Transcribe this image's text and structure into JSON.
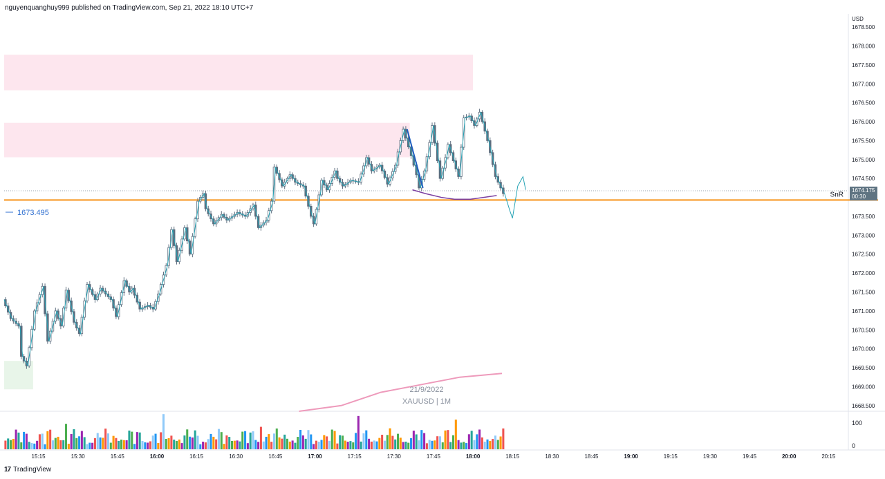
{
  "header": {
    "published": "nguyenquanghuy999 published on TradingView.com, Sep 21, 2022 18:10 UTC+7"
  },
  "footer": {
    "brand": "TradingView",
    "logo_icon": "tradingview-logo-icon"
  },
  "colors": {
    "candle": "#5d6d7e",
    "zigzag": "#26a3b5",
    "snr_line": "#f7931a",
    "demand_zone": "#e8f5e9",
    "supply_zone": "#fde6ee",
    "ma_line": "#ee9abb",
    "short_ma": "#7b3fa0",
    "leg": "#1e5fbf",
    "price_label_bg": "#5f7482",
    "ref_price": "#2f6fd0"
  },
  "chart_data": {
    "type": "candlestick",
    "symbol": "XAUUSD",
    "interval": "1M",
    "date": "21/9/2022",
    "watermark_lines": [
      "21/9/2022",
      "XAUUSD | 1M"
    ],
    "currency": "USD",
    "price_axis_labels": [
      "1678.500",
      "1678.000",
      "1677.500",
      "1677.000",
      "1676.500",
      "1676.000",
      "1675.500",
      "1675.000",
      "1674.500",
      "1674.000",
      "1673.500",
      "1673.000",
      "1672.500",
      "1672.000",
      "1671.500",
      "1671.000",
      "1670.500",
      "1670.000",
      "1669.500",
      "1669.000",
      "1668.500"
    ],
    "ylim": [
      1668.35,
      1678.85
    ],
    "time_axis_labels": [
      {
        "label": "15:15",
        "bold": false
      },
      {
        "label": "15:30",
        "bold": false
      },
      {
        "label": "15:45",
        "bold": false
      },
      {
        "label": "16:00",
        "bold": true
      },
      {
        "label": "16:15",
        "bold": false
      },
      {
        "label": "16:30",
        "bold": false
      },
      {
        "label": "16:45",
        "bold": false
      },
      {
        "label": "17:00",
        "bold": true
      },
      {
        "label": "17:15",
        "bold": false
      },
      {
        "label": "17:30",
        "bold": false
      },
      {
        "label": "17:45",
        "bold": false
      },
      {
        "label": "18:00",
        "bold": true
      },
      {
        "label": "18:15",
        "bold": false
      },
      {
        "label": "18:30",
        "bold": false
      },
      {
        "label": "18:45",
        "bold": false
      },
      {
        "label": "19:00",
        "bold": true
      },
      {
        "label": "19:15",
        "bold": false
      },
      {
        "label": "19:30",
        "bold": false
      },
      {
        "label": "19:45",
        "bold": false
      },
      {
        "label": "20:00",
        "bold": true
      },
      {
        "label": "20:15",
        "bold": false
      }
    ],
    "time_start": "15:02",
    "time_end": "20:22",
    "last_bar_time": "18:11",
    "current_price": "1674.175",
    "countdown": "00:30",
    "current_price_value": 1674.175,
    "ref_price_label": "1673.495",
    "snr": {
      "label": "SnR",
      "price": 1673.93
    },
    "zones": [
      {
        "kind": "supply",
        "price_top": 1677.77,
        "price_bottom": 1676.83,
        "time_start": "15:02",
        "time_end": "18:00"
      },
      {
        "kind": "supply",
        "price_top": 1675.97,
        "price_bottom": 1675.06,
        "time_start": "15:02",
        "time_end": "17:36"
      },
      {
        "kind": "demand",
        "price_top": 1669.68,
        "price_bottom": 1668.93,
        "time_start": "15:02",
        "time_end": "15:13"
      }
    ],
    "zigzag_points": [
      [
        "15:02",
        1671.3
      ],
      [
        "15:05",
        1670.8
      ],
      [
        "15:08",
        1670.6
      ],
      [
        "15:09",
        1669.8
      ],
      [
        "15:11",
        1669.55
      ],
      [
        "15:14",
        1671.0
      ],
      [
        "15:17",
        1671.65
      ],
      [
        "15:19",
        1670.2
      ],
      [
        "15:22",
        1671.0
      ],
      [
        "15:24",
        1670.6
      ],
      [
        "15:26",
        1671.55
      ],
      [
        "15:29",
        1670.7
      ],
      [
        "15:31",
        1670.4
      ],
      [
        "15:34",
        1671.7
      ],
      [
        "15:37",
        1671.3
      ],
      [
        "15:39",
        1671.6
      ],
      [
        "15:43",
        1671.3
      ],
      [
        "15:45",
        1670.85
      ],
      [
        "15:48",
        1671.8
      ],
      [
        "15:50",
        1671.5
      ],
      [
        "15:51",
        1671.6
      ],
      [
        "15:54",
        1671.05
      ],
      [
        "15:57",
        1671.15
      ],
      [
        "15:59",
        1671.05
      ],
      [
        "16:01",
        1671.45
      ],
      [
        "16:04",
        1672.2
      ],
      [
        "16:06",
        1673.15
      ],
      [
        "16:08",
        1672.3
      ],
      [
        "16:11",
        1673.2
      ],
      [
        "16:13",
        1672.5
      ],
      [
        "16:16",
        1673.9
      ],
      [
        "16:18",
        1674.1
      ],
      [
        "16:19",
        1673.7
      ],
      [
        "16:22",
        1673.3
      ],
      [
        "16:25",
        1673.55
      ],
      [
        "16:27",
        1673.4
      ],
      [
        "16:31",
        1673.6
      ],
      [
        "16:34",
        1673.5
      ],
      [
        "16:37",
        1673.8
      ],
      [
        "16:39",
        1673.2
      ],
      [
        "16:42",
        1673.4
      ],
      [
        "16:44",
        1673.9
      ],
      [
        "16:45",
        1674.8
      ],
      [
        "16:48",
        1674.3
      ],
      [
        "16:51",
        1674.6
      ],
      [
        "16:53",
        1674.4
      ],
      [
        "16:56",
        1674.3
      ],
      [
        "16:59",
        1673.5
      ],
      [
        "17:00",
        1673.3
      ],
      [
        "17:03",
        1674.45
      ],
      [
        "17:05",
        1674.2
      ],
      [
        "17:08",
        1674.7
      ],
      [
        "17:09",
        1674.5
      ],
      [
        "17:11",
        1674.3
      ],
      [
        "17:14",
        1674.45
      ],
      [
        "17:17",
        1674.4
      ],
      [
        "17:20",
        1675.05
      ],
      [
        "17:22",
        1674.7
      ],
      [
        "17:25",
        1674.85
      ],
      [
        "17:26",
        1674.7
      ],
      [
        "17:28",
        1674.35
      ],
      [
        "17:31",
        1674.85
      ],
      [
        "17:32",
        1675.2
      ],
      [
        "17:34",
        1675.8
      ],
      [
        "17:37",
        1675.1
      ],
      [
        "17:39",
        1674.6
      ],
      [
        "17:40",
        1674.25
      ],
      [
        "17:42",
        1674.7
      ],
      [
        "17:44",
        1675.45
      ],
      [
        "17:45",
        1675.9
      ],
      [
        "17:48",
        1674.5
      ],
      [
        "17:50",
        1675.05
      ],
      [
        "17:51",
        1675.4
      ],
      [
        "17:54",
        1674.75
      ],
      [
        "17:55",
        1674.55
      ],
      [
        "17:57",
        1676.1
      ],
      [
        "17:59",
        1676.15
      ],
      [
        "18:01",
        1675.9
      ],
      [
        "18:03",
        1676.25
      ],
      [
        "18:06",
        1675.5
      ],
      [
        "18:09",
        1674.55
      ],
      [
        "18:11",
        1674.25
      ],
      [
        "18:12",
        1674.1
      ],
      [
        "18:14",
        1673.65
      ],
      [
        "18:15",
        1673.45
      ],
      [
        "18:17",
        1674.3
      ],
      [
        "18:19",
        1674.55
      ],
      [
        "18:20",
        1674.2
      ]
    ],
    "short_ma_points": [
      [
        "17:37",
        1674.2
      ],
      [
        "17:42",
        1674.1
      ],
      [
        "17:48",
        1674.0
      ],
      [
        "17:53",
        1673.95
      ],
      [
        "17:59",
        1673.95
      ],
      [
        "18:04",
        1674.0
      ],
      [
        "18:09",
        1674.05
      ]
    ],
    "leg_points": [
      [
        "17:35",
        1675.8
      ],
      [
        "17:41",
        1674.25
      ]
    ],
    "long_ma_points": [
      [
        "16:54",
        1668.35
      ],
      [
        "17:10",
        1668.5
      ],
      [
        "17:25",
        1668.85
      ],
      [
        "17:40",
        1669.05
      ],
      [
        "17:55",
        1669.25
      ],
      [
        "18:11",
        1669.35
      ]
    ],
    "volume_axis_labels": [
      "100",
      "0"
    ],
    "volume_ylim": [
      0,
      140
    ],
    "volume_color_sequence": [
      "#26a69a",
      "#ef5350",
      "#9c27b0",
      "#ff9800",
      "#2196f3",
      "#4caf50",
      "#90caf9"
    ]
  }
}
